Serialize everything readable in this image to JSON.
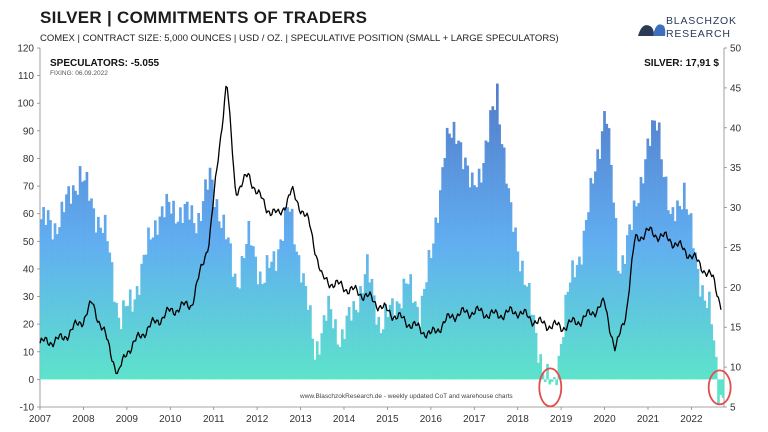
{
  "header": {
    "title": "SILVER | COMMITMENTS OF TRADERS",
    "subtitle": "COMEX | CONTRACT SIZE: 5,000 OUNCES | USD / OZ. | SPECULATIVE POSITION (SMALL + LARGE SPECULATORS)",
    "logo_line1": "BLASCHZOK",
    "logo_line2": "RESEARCH"
  },
  "annotations": {
    "speculators": "SPECULATORS: -5.055",
    "fixing": "FIXING: 06.09.2022",
    "silver": "SILVER: 17,91 $",
    "watermark": "www.BlaschzokResearch.de - weekly updated CoT and warehouse charts"
  },
  "colors": {
    "bar_top": "#4a72c4",
    "bar_mid": "#5aaaf0",
    "bar_low": "#56e2c8",
    "line": "#000000",
    "highlight_circle": "#e24c4c"
  },
  "chart_data": {
    "type": "area",
    "x_ticks": [
      "2007",
      "2008",
      "2009",
      "2010",
      "2011",
      "2012",
      "2013",
      "2014",
      "2015",
      "2016",
      "2017",
      "2018",
      "2019",
      "2020",
      "2021",
      "2022"
    ],
    "left_axis": {
      "ylim": [
        -10,
        120
      ],
      "ticks": [
        "-10",
        "0",
        "10",
        "20",
        "30",
        "40",
        "50",
        "60",
        "70",
        "80",
        "90",
        "100",
        "110",
        "120"
      ]
    },
    "right_axis": {
      "ylim": [
        5,
        50
      ],
      "ticks": [
        "5",
        "10",
        "15",
        "20",
        "25",
        "30",
        "35",
        "40",
        "45",
        "50"
      ]
    },
    "series": [
      {
        "axis": "left",
        "kind": "bars",
        "x": [
          2007.0,
          2007.3,
          2007.6,
          2007.9,
          2008.2,
          2008.5,
          2008.8,
          2009.1,
          2009.4,
          2009.7,
          2010.0,
          2010.3,
          2010.6,
          2010.9,
          2011.2,
          2011.5,
          2011.8,
          2012.1,
          2012.4,
          2012.7,
          2013.0,
          2013.3,
          2013.6,
          2013.9,
          2014.2,
          2014.5,
          2014.8,
          2015.1,
          2015.4,
          2015.7,
          2016.0,
          2016.3,
          2016.6,
          2016.9,
          2017.2,
          2017.5,
          2017.8,
          2018.1,
          2018.4,
          2018.6,
          2018.8,
          2019.1,
          2019.4,
          2019.7,
          2020.0,
          2020.3,
          2020.6,
          2020.9,
          2021.2,
          2021.5,
          2021.8,
          2022.1,
          2022.4,
          2022.6
        ],
        "values": [
          58,
          55,
          64,
          75,
          62,
          52,
          22,
          28,
          45,
          60,
          62,
          60,
          58,
          73,
          55,
          35,
          52,
          35,
          45,
          62,
          40,
          10,
          25,
          15,
          25,
          40,
          20,
          25,
          35,
          25,
          45,
          85,
          90,
          68,
          80,
          105,
          60,
          40,
          15,
          2,
          -5,
          30,
          45,
          70,
          100,
          40,
          55,
          80,
          95,
          55,
          70,
          40,
          25,
          -5
        ]
      },
      {
        "axis": "right",
        "kind": "line",
        "x": [
          2007.0,
          2007.5,
          2008.0,
          2008.2,
          2008.5,
          2008.8,
          2009.0,
          2009.5,
          2010.0,
          2010.5,
          2010.9,
          2011.3,
          2011.5,
          2011.8,
          2012.2,
          2012.5,
          2012.8,
          2013.2,
          2013.5,
          2014.0,
          2014.5,
          2015.0,
          2015.5,
          2016.0,
          2016.5,
          2017.0,
          2017.5,
          2018.0,
          2018.5,
          2019.0,
          2019.5,
          2020.0,
          2020.25,
          2020.5,
          2020.7,
          2021.0,
          2021.5,
          2022.0,
          2022.5,
          2022.68
        ],
        "values": [
          13,
          13.5,
          16,
          18,
          14,
          9,
          12,
          15,
          17,
          18,
          26,
          46,
          32,
          34,
          30,
          29,
          32,
          28,
          21,
          20,
          19,
          17,
          15.5,
          14,
          16.5,
          17,
          16.5,
          17,
          15.5,
          15,
          16,
          18,
          12,
          17,
          26,
          27,
          26,
          24,
          21,
          17.9
        ]
      }
    ]
  }
}
